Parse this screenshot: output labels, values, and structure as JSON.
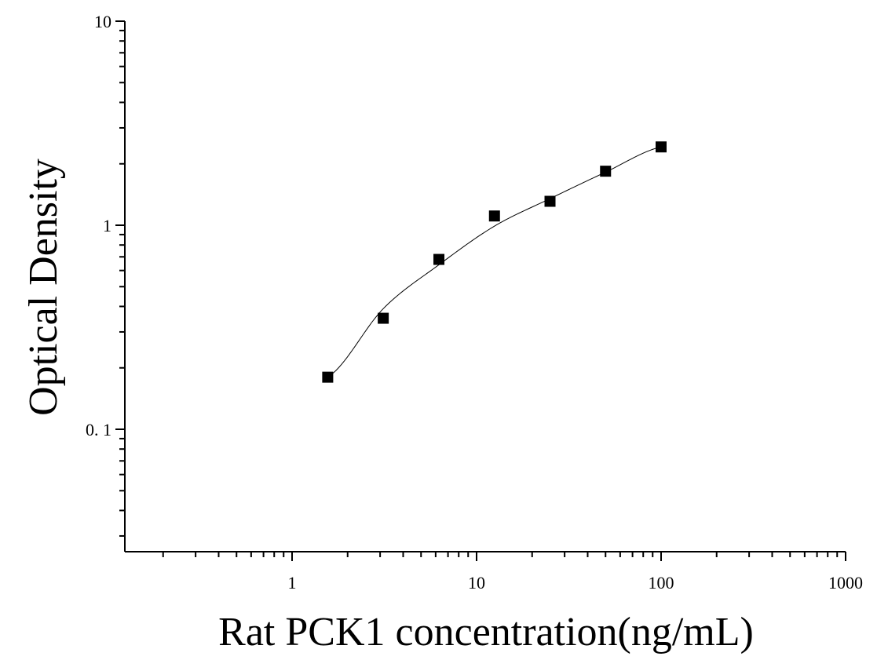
{
  "chart_data": {
    "type": "scatter",
    "title": "",
    "xlabel": "Rat PCK1 concentration(ng/mL)",
    "ylabel": "Optical Density",
    "xscale": "log",
    "yscale": "log",
    "xlim": [
      0.12,
      1000
    ],
    "ylim": [
      0.03,
      10
    ],
    "x_ticks": [
      1,
      10,
      100,
      1000
    ],
    "x_tick_labels": [
      "1",
      "10",
      "100",
      "1000"
    ],
    "y_ticks": [
      0.1,
      1,
      10
    ],
    "y_tick_labels": [
      "0. 1",
      "1",
      "10"
    ],
    "grid": false,
    "legend": "none",
    "series": [
      {
        "marker": "square",
        "x": [
          1.56,
          3.12,
          6.25,
          12.5,
          25,
          50,
          100
        ],
        "y": [
          0.18,
          0.35,
          0.68,
          1.11,
          1.31,
          1.84,
          2.42
        ]
      }
    ],
    "fit_curve": {
      "style": "thin-line",
      "x": [
        1.56,
        3.12,
        6.25,
        12.5,
        25,
        50,
        100
      ],
      "y": [
        0.18,
        0.39,
        0.64,
        0.99,
        1.35,
        1.82,
        2.42
      ]
    },
    "colors": {
      "axis": "#000000",
      "marker": "#000000",
      "curve": "#000000"
    }
  }
}
